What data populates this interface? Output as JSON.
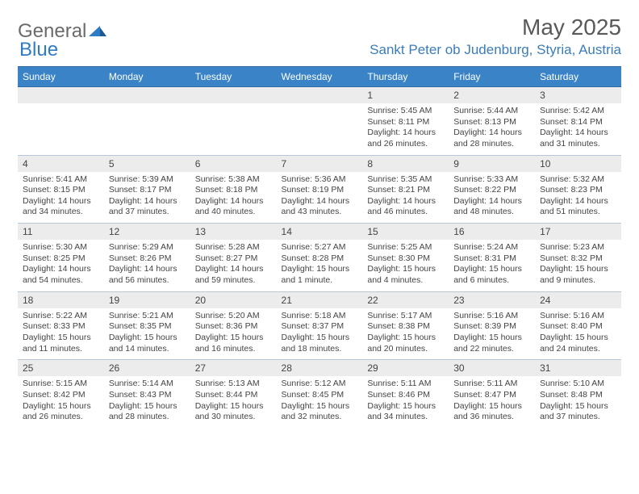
{
  "brand": {
    "word1": "General",
    "word2": "Blue"
  },
  "title": "May 2025",
  "location": "Sankt Peter ob Judenburg, Styria, Austria",
  "colors": {
    "header_bg": "#3a83c6",
    "header_text": "#ffffff",
    "daynum_bg": "#ececec",
    "border": "#b9c7d4",
    "brand_gray": "#6a6a6a",
    "brand_blue": "#2f7bc4",
    "location_color": "#3a7db8",
    "title_color": "#595959",
    "body_text": "#444444"
  },
  "day_headers": [
    "Sunday",
    "Monday",
    "Tuesday",
    "Wednesday",
    "Thursday",
    "Friday",
    "Saturday"
  ],
  "weeks": [
    [
      null,
      null,
      null,
      null,
      {
        "n": "1",
        "sr": "5:45 AM",
        "ss": "8:11 PM",
        "dl": "14 hours and 26 minutes."
      },
      {
        "n": "2",
        "sr": "5:44 AM",
        "ss": "8:13 PM",
        "dl": "14 hours and 28 minutes."
      },
      {
        "n": "3",
        "sr": "5:42 AM",
        "ss": "8:14 PM",
        "dl": "14 hours and 31 minutes."
      }
    ],
    [
      {
        "n": "4",
        "sr": "5:41 AM",
        "ss": "8:15 PM",
        "dl": "14 hours and 34 minutes."
      },
      {
        "n": "5",
        "sr": "5:39 AM",
        "ss": "8:17 PM",
        "dl": "14 hours and 37 minutes."
      },
      {
        "n": "6",
        "sr": "5:38 AM",
        "ss": "8:18 PM",
        "dl": "14 hours and 40 minutes."
      },
      {
        "n": "7",
        "sr": "5:36 AM",
        "ss": "8:19 PM",
        "dl": "14 hours and 43 minutes."
      },
      {
        "n": "8",
        "sr": "5:35 AM",
        "ss": "8:21 PM",
        "dl": "14 hours and 46 minutes."
      },
      {
        "n": "9",
        "sr": "5:33 AM",
        "ss": "8:22 PM",
        "dl": "14 hours and 48 minutes."
      },
      {
        "n": "10",
        "sr": "5:32 AM",
        "ss": "8:23 PM",
        "dl": "14 hours and 51 minutes."
      }
    ],
    [
      {
        "n": "11",
        "sr": "5:30 AM",
        "ss": "8:25 PM",
        "dl": "14 hours and 54 minutes."
      },
      {
        "n": "12",
        "sr": "5:29 AM",
        "ss": "8:26 PM",
        "dl": "14 hours and 56 minutes."
      },
      {
        "n": "13",
        "sr": "5:28 AM",
        "ss": "8:27 PM",
        "dl": "14 hours and 59 minutes."
      },
      {
        "n": "14",
        "sr": "5:27 AM",
        "ss": "8:28 PM",
        "dl": "15 hours and 1 minute."
      },
      {
        "n": "15",
        "sr": "5:25 AM",
        "ss": "8:30 PM",
        "dl": "15 hours and 4 minutes."
      },
      {
        "n": "16",
        "sr": "5:24 AM",
        "ss": "8:31 PM",
        "dl": "15 hours and 6 minutes."
      },
      {
        "n": "17",
        "sr": "5:23 AM",
        "ss": "8:32 PM",
        "dl": "15 hours and 9 minutes."
      }
    ],
    [
      {
        "n": "18",
        "sr": "5:22 AM",
        "ss": "8:33 PM",
        "dl": "15 hours and 11 minutes."
      },
      {
        "n": "19",
        "sr": "5:21 AM",
        "ss": "8:35 PM",
        "dl": "15 hours and 14 minutes."
      },
      {
        "n": "20",
        "sr": "5:20 AM",
        "ss": "8:36 PM",
        "dl": "15 hours and 16 minutes."
      },
      {
        "n": "21",
        "sr": "5:18 AM",
        "ss": "8:37 PM",
        "dl": "15 hours and 18 minutes."
      },
      {
        "n": "22",
        "sr": "5:17 AM",
        "ss": "8:38 PM",
        "dl": "15 hours and 20 minutes."
      },
      {
        "n": "23",
        "sr": "5:16 AM",
        "ss": "8:39 PM",
        "dl": "15 hours and 22 minutes."
      },
      {
        "n": "24",
        "sr": "5:16 AM",
        "ss": "8:40 PM",
        "dl": "15 hours and 24 minutes."
      }
    ],
    [
      {
        "n": "25",
        "sr": "5:15 AM",
        "ss": "8:42 PM",
        "dl": "15 hours and 26 minutes."
      },
      {
        "n": "26",
        "sr": "5:14 AM",
        "ss": "8:43 PM",
        "dl": "15 hours and 28 minutes."
      },
      {
        "n": "27",
        "sr": "5:13 AM",
        "ss": "8:44 PM",
        "dl": "15 hours and 30 minutes."
      },
      {
        "n": "28",
        "sr": "5:12 AM",
        "ss": "8:45 PM",
        "dl": "15 hours and 32 minutes."
      },
      {
        "n": "29",
        "sr": "5:11 AM",
        "ss": "8:46 PM",
        "dl": "15 hours and 34 minutes."
      },
      {
        "n": "30",
        "sr": "5:11 AM",
        "ss": "8:47 PM",
        "dl": "15 hours and 36 minutes."
      },
      {
        "n": "31",
        "sr": "5:10 AM",
        "ss": "8:48 PM",
        "dl": "15 hours and 37 minutes."
      }
    ]
  ],
  "labels": {
    "sunrise": "Sunrise:",
    "sunset": "Sunset:",
    "daylight": "Daylight:"
  }
}
